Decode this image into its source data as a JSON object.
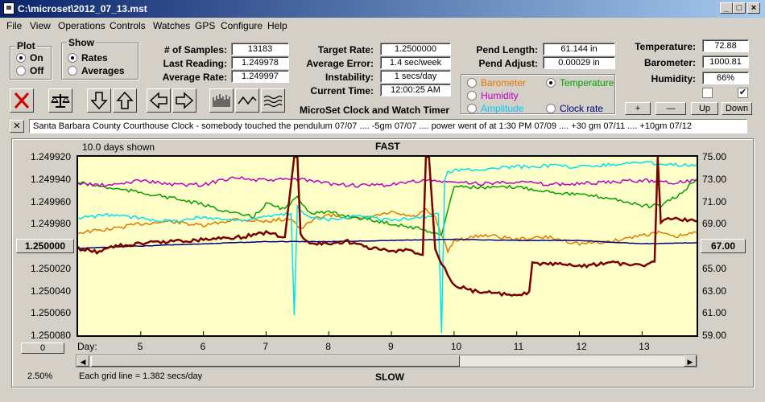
{
  "window": {
    "title": "C:\\microset\\2012_07_13.mst"
  },
  "menu": [
    "File",
    "View",
    "Operations",
    "Controls",
    "Watches",
    "GPS",
    "Configure",
    "Help"
  ],
  "plot_group": {
    "label": "Plot",
    "options": [
      "On",
      "Off"
    ],
    "selected": "On"
  },
  "show_group": {
    "label": "Show",
    "options": [
      "Rates",
      "Averages"
    ],
    "selected": "Rates"
  },
  "stats": {
    "samples_label": "# of Samples:",
    "samples": "13183",
    "last_label": "Last Reading:",
    "last": "1.249978",
    "avg_label": "Average Rate:",
    "avg": "1.249997"
  },
  "target": {
    "target_label": "Target Rate:",
    "target": "1.2500000",
    "avgerr_label": "Average Error:",
    "avgerr": "1.4 sec/week",
    "instab_label": "Instability:",
    "instab": "1 secs/day",
    "time_label": "Current Time:",
    "time": "12:00:25 AM",
    "app_name": "MicroSet Clock and Watch Timer"
  },
  "pendulum": {
    "length_label": "Pend Length:",
    "length": "61.144 in",
    "adjust_label": "Pend Adjust:",
    "adjust": "0.00029 in"
  },
  "sensor_select": {
    "options": [
      {
        "label": "Barometer",
        "color": "#e07800"
      },
      {
        "label": "Temperature",
        "color": "#00a000"
      },
      {
        "label": "Humidity",
        "color": "#c000c0"
      },
      {
        "label": "Clock rate",
        "color": "#000080"
      },
      {
        "label": "Amplitude",
        "color": "#00c8ff"
      }
    ],
    "selected": "Temperature"
  },
  "environment": {
    "temp_label": "Temperature:",
    "temp": "72.88",
    "baro_label": "Barometer:",
    "baro": "1000.81",
    "hum_label": "Humidity:",
    "hum": "66%"
  },
  "scale_buttons": {
    "plus": "+",
    "minus": "—",
    "up": "Up",
    "down": "Down"
  },
  "notes": "Santa Barbara County Courthouse Clock -  somebody touched the pendulum 07/07  ....  -5gm 07/07  ....  power went of at 1:30 PM 07/09 ....  +30 gm 07/11  ....  +10gm 07/12",
  "chart": {
    "days_shown": "10.0 days shown",
    "top_label": "FAST",
    "bottom_label": "SLOW",
    "grid_note": "Each grid line = 1.382 secs/day",
    "zoom": "2.50%",
    "left_button": "1.250000",
    "right_button": "67.00",
    "offset_button": "0",
    "day_label": "Day:"
  },
  "chart_data": {
    "type": "line",
    "y_left_ticks": [
      "1.249920",
      "1.249940",
      "1.249960",
      "1.249980",
      "1.250000",
      "1.250020",
      "1.250040",
      "1.250060",
      "1.250080"
    ],
    "y_left_range": [
      1.24992,
      1.25008
    ],
    "y_right_ticks": [
      "75.00",
      "73.00",
      "71.00",
      "69.00",
      "67.00",
      "65.00",
      "63.00",
      "61.00",
      "59.00"
    ],
    "y_right_range": [
      59.0,
      75.0
    ],
    "x_ticks": [
      "5",
      "6",
      "7",
      "8",
      "9",
      "10",
      "11",
      "12",
      "13"
    ],
    "x_range": [
      4.0,
      13.87
    ],
    "series": [
      {
        "color": "#e07800",
        "axis": "left",
        "x": [
          4.0,
          4.5,
          5.0,
          5.5,
          6.0,
          6.5,
          7.0,
          7.4,
          7.55,
          7.8,
          8.0,
          8.5,
          9.0,
          9.35,
          9.55,
          9.7,
          9.8,
          9.9,
          10.0,
          10.5,
          11.0,
          11.5,
          12.0,
          12.5,
          13.0,
          13.3,
          13.5,
          13.87
        ],
        "y": [
          1.249988,
          1.249985,
          1.24998,
          1.249978,
          1.249982,
          1.249976,
          1.249978,
          1.249975,
          1.249985,
          1.249975,
          1.249972,
          1.249976,
          1.24997,
          1.249974,
          1.249968,
          1.249975,
          1.24999,
          1.250005,
          1.249995,
          1.24999,
          1.249994,
          1.249992,
          1.249998,
          1.249996,
          1.24999,
          1.249988,
          1.249992,
          1.249988
        ]
      },
      {
        "color": "#00a000",
        "axis": "right",
        "x": [
          4.0,
          4.5,
          5.0,
          5.5,
          6.0,
          6.5,
          6.8,
          7.0,
          7.3,
          7.5,
          7.7,
          8.0,
          8.5,
          9.0,
          9.5,
          9.8,
          10.0,
          10.5,
          11.0,
          11.5,
          12.0,
          12.5,
          13.0,
          13.3,
          13.6,
          13.87
        ],
        "y": [
          72.7,
          72.2,
          71.8,
          71.3,
          70.7,
          69.9,
          69.6,
          70.8,
          70.3,
          71.4,
          70.0,
          70.0,
          69.5,
          69.0,
          68.5,
          68.0,
          72.4,
          72.2,
          72.3,
          71.9,
          71.6,
          71.3,
          70.6,
          70.6,
          71.6,
          73.0
        ]
      },
      {
        "color": "#c000c0",
        "axis": "right",
        "x": [
          4.0,
          4.5,
          5.0,
          5.5,
          6.0,
          6.5,
          6.8,
          7.0,
          7.5,
          8.0,
          8.5,
          9.0,
          9.5,
          10.0,
          10.5,
          11.0,
          11.5,
          12.0,
          12.5,
          13.0,
          13.5,
          13.87
        ],
        "y": [
          72.6,
          72.4,
          72.9,
          72.5,
          72.5,
          73.2,
          72.9,
          72.9,
          73.0,
          72.6,
          72.4,
          72.5,
          72.9,
          72.7,
          72.6,
          72.8,
          72.5,
          72.6,
          72.7,
          72.9,
          72.7,
          72.9
        ]
      },
      {
        "color": "#00e0f0",
        "axis": "right",
        "x": [
          4.0,
          4.5,
          5.0,
          5.5,
          6.0,
          6.5,
          7.0,
          7.4,
          7.45,
          7.5,
          7.6,
          8.0,
          8.5,
          9.0,
          9.5,
          9.75,
          9.8,
          9.85,
          9.9,
          10.0,
          10.5,
          11.0,
          11.5,
          12.0,
          12.5,
          13.0,
          13.5,
          13.87
        ],
        "y": [
          69.5,
          69.8,
          69.5,
          69.2,
          69.6,
          69.3,
          69.6,
          69.9,
          60.8,
          70.5,
          69.8,
          69.4,
          69.7,
          69.3,
          69.6,
          69.9,
          59.2,
          72.8,
          73.6,
          73.8,
          73.9,
          74.1,
          74.2,
          74.1,
          74.3,
          74.5,
          74.3,
          74.3
        ]
      },
      {
        "color": "#000080",
        "axis": "left",
        "x": [
          4.0,
          5.0,
          6.0,
          7.0,
          8.0,
          9.0,
          10.0,
          11.0,
          12.0,
          13.0,
          13.87
        ],
        "y": [
          1.250002,
          1.25,
          1.249998,
          1.249996,
          1.249996,
          1.249995,
          1.249994,
          1.249995,
          1.249995,
          1.249998,
          1.249997
        ]
      },
      {
        "color": "#7a0000",
        "axis": "left",
        "x": [
          4.0,
          4.3,
          4.6,
          5.0,
          5.4,
          5.8,
          6.2,
          6.6,
          7.0,
          7.3,
          7.45,
          7.5,
          7.55,
          7.7,
          8.0,
          8.3,
          8.6,
          9.0,
          9.3,
          9.5,
          9.55,
          9.6,
          9.7,
          9.8,
          9.85,
          9.9,
          10.0,
          10.3,
          10.6,
          11.0,
          11.2,
          11.25,
          11.5,
          12.0,
          12.5,
          13.0,
          13.2,
          13.25,
          13.3,
          13.5,
          13.87
        ],
        "y": [
          1.250002,
          1.250005,
          1.25,
          1.249998,
          1.249996,
          1.249995,
          1.249993,
          1.249992,
          1.249988,
          1.249992,
          1.2499,
          1.2499,
          1.24999,
          1.249998,
          1.249998,
          1.249996,
          1.250001,
          1.250005,
          1.250004,
          1.250008,
          1.2499,
          1.2499,
          1.250003,
          1.250015,
          1.250018,
          1.250025,
          1.250035,
          1.25004,
          1.250042,
          1.250045,
          1.250042,
          1.250016,
          1.250016,
          1.250018,
          1.250015,
          1.250018,
          1.250014,
          1.2499,
          1.249978,
          1.249975,
          1.249978
        ]
      }
    ],
    "grid": false
  }
}
